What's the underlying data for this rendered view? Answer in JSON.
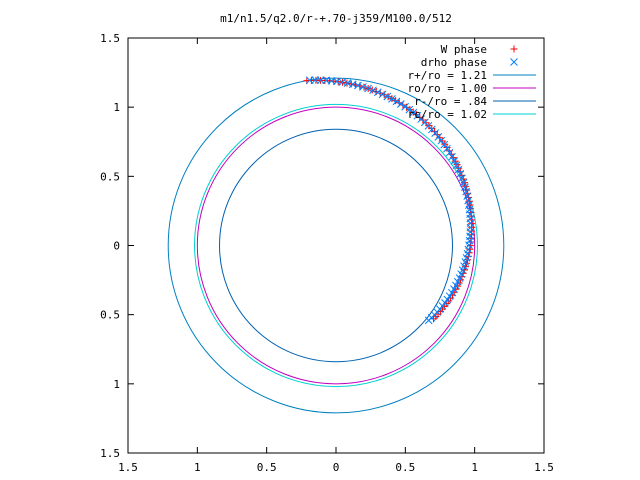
{
  "chart_data": {
    "type": "scatter",
    "title": "m1/n1.5/q2.0/r-+.70-j359/M100.0/512",
    "xlim": [
      -1.5,
      1.5
    ],
    "ylim": [
      -1.5,
      1.5
    ],
    "xticks": [
      {
        "value": -1.5,
        "label": "1.5"
      },
      {
        "value": -1.0,
        "label": "1"
      },
      {
        "value": -0.5,
        "label": "0.5"
      },
      {
        "value": 0,
        "label": "0"
      },
      {
        "value": 0.5,
        "label": "0.5"
      },
      {
        "value": 1.0,
        "label": "1"
      },
      {
        "value": 1.5,
        "label": "1.5"
      }
    ],
    "yticks": [
      {
        "value": 1.5,
        "label": "1.5"
      },
      {
        "value": 1.0,
        "label": "1"
      },
      {
        "value": 0.5,
        "label": "0.5"
      },
      {
        "value": 0,
        "label": "0"
      },
      {
        "value": -0.5,
        "label": "0.5"
      },
      {
        "value": -1.0,
        "label": "1"
      },
      {
        "value": -1.5,
        "label": "1.5"
      }
    ],
    "legend_position": "top-right",
    "grid": false,
    "series": [
      {
        "name": "W phase",
        "kind": "points",
        "marker": "plus",
        "color": "#ff0000",
        "radius_start": 1.21,
        "radius_end": 0.88,
        "angle_start_deg": 100,
        "angle_end_deg": -37,
        "count": 90
      },
      {
        "name": "drho phase",
        "kind": "points",
        "marker": "cross",
        "color": "#0080ff",
        "radius_start": 1.21,
        "radius_end": 0.86,
        "angle_start_deg": 99,
        "angle_end_deg": -39,
        "count": 75
      },
      {
        "name": "r+/ro = 1.21",
        "kind": "circle",
        "radius": 1.21,
        "color": "#0080c0"
      },
      {
        "name": "ro/ro = 1.00",
        "kind": "circle",
        "radius": 1.0,
        "color": "#c000c0"
      },
      {
        "name": "r-/ro = .84",
        "kind": "circle",
        "radius": 0.84,
        "color": "#0060b0"
      },
      {
        "name": "rc/ro = 1.02",
        "kind": "circle",
        "radius": 1.02,
        "color": "#00d0d0"
      }
    ]
  }
}
